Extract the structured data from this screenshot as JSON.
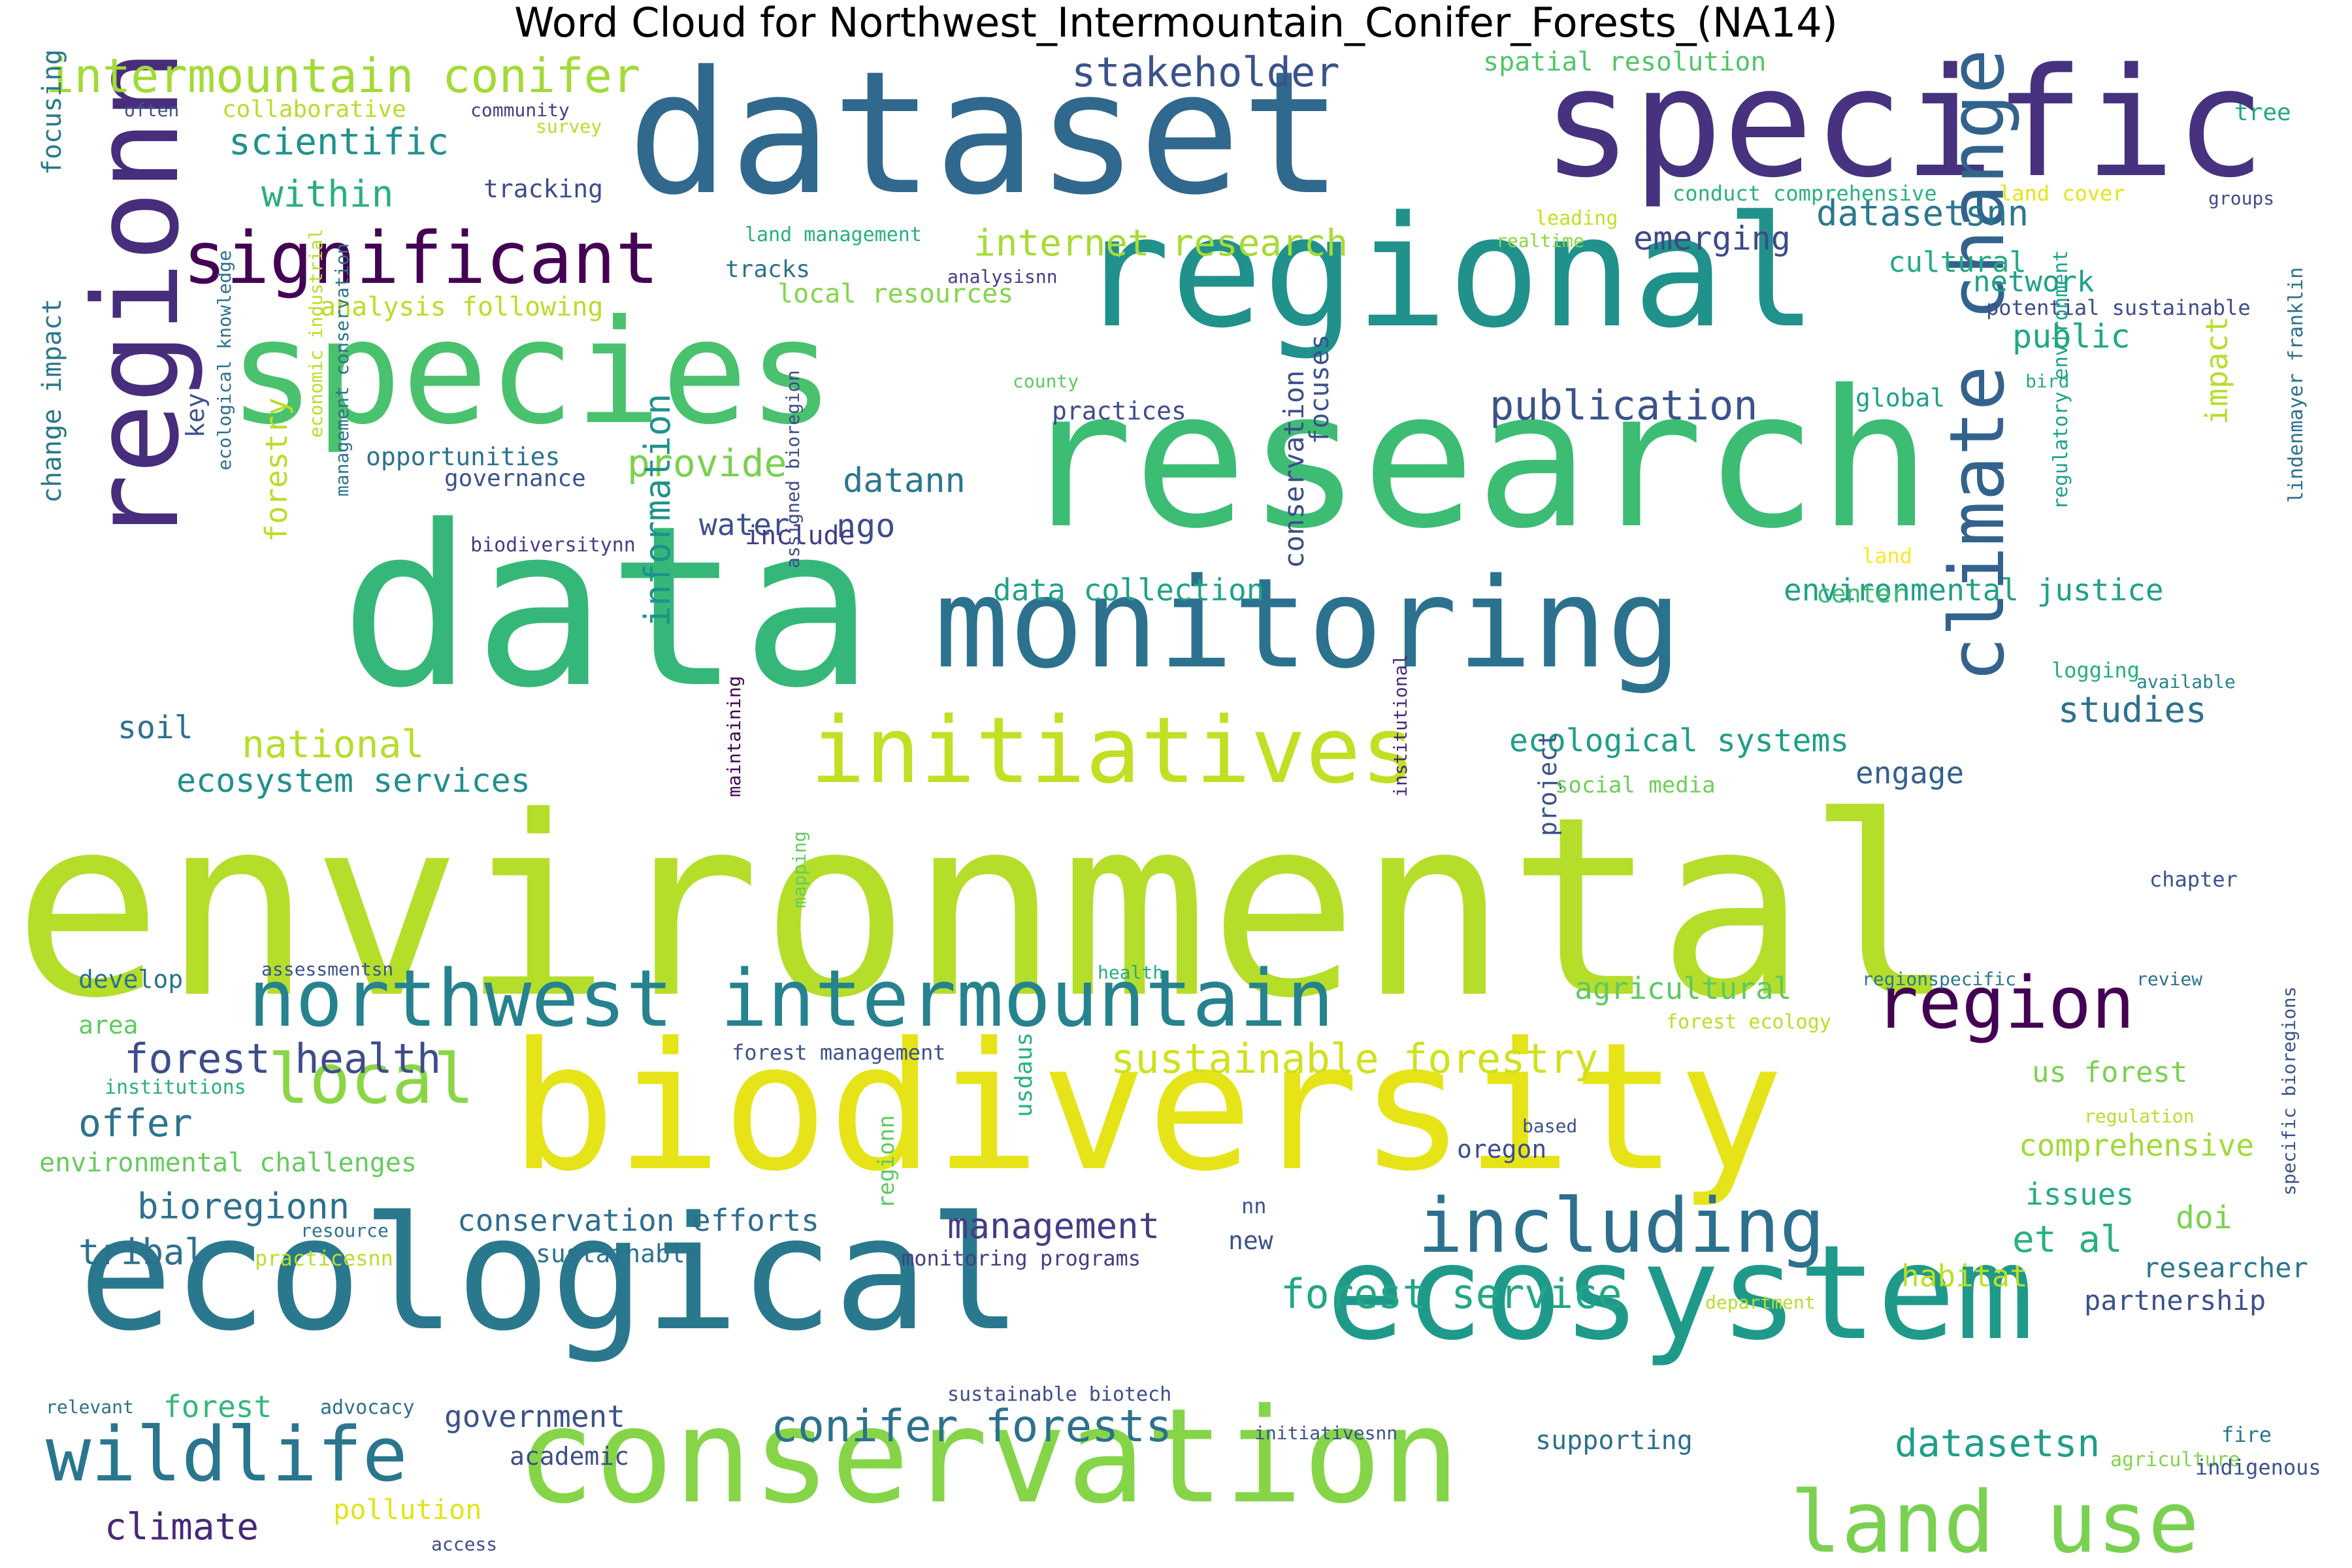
{
  "title": "Word Cloud for Northwest_Intermountain_Conifer_Forests_(NA14)",
  "colors": {
    "palette": "viridis",
    "background": "#ffffff"
  },
  "words": [
    {
      "text": "environmental",
      "color": "#b5de2b"
    },
    {
      "text": "data",
      "color": "#35b779"
    },
    {
      "text": "research",
      "color": "#3dbc74"
    },
    {
      "text": "dataset",
      "color": "#31688e"
    },
    {
      "text": "specific",
      "color": "#46327e"
    },
    {
      "text": "biodiversity",
      "color": "#e6e419"
    },
    {
      "text": "regional",
      "color": "#21918c"
    },
    {
      "text": "ecological",
      "color": "#2a788e"
    },
    {
      "text": "species",
      "color": "#4ac16d"
    },
    {
      "text": "monitoring",
      "color": "#2c728e"
    },
    {
      "text": "conservation",
      "color": "#86d549"
    },
    {
      "text": "ecosystem",
      "color": "#1f9a8a"
    },
    {
      "text": "regionn",
      "color": "#472d7b"
    },
    {
      "text": "initiatives",
      "color": "#c2df23"
    },
    {
      "text": "northwest intermountain",
      "color": "#26828e"
    },
    {
      "text": "including",
      "color": "#2d708e"
    },
    {
      "text": "climate change",
      "color": "#33638d"
    },
    {
      "text": "significant",
      "color": "#440154"
    },
    {
      "text": "land use",
      "color": "#7ad151"
    },
    {
      "text": "wildlife",
      "color": "#2a768e"
    },
    {
      "text": "region",
      "color": "#440154"
    },
    {
      "text": "local",
      "color": "#8bd646"
    },
    {
      "text": "intermountain conifer",
      "color": "#a2da37"
    },
    {
      "text": "conifer forests",
      "color": "#2c728e"
    },
    {
      "text": "forest health",
      "color": "#3e4c8a"
    },
    {
      "text": "stakeholder",
      "color": "#3b528b"
    },
    {
      "text": "scientific",
      "color": "#21918c"
    },
    {
      "text": "within",
      "color": "#29af7f"
    },
    {
      "text": "sustainable forestry",
      "color": "#d0e11c"
    },
    {
      "text": "forest service",
      "color": "#22a785"
    },
    {
      "text": "publication",
      "color": "#3b528b"
    },
    {
      "text": "national",
      "color": "#b5de2b"
    },
    {
      "text": "ecosystem services",
      "color": "#218f8d"
    },
    {
      "text": "provide",
      "color": "#7ad151"
    },
    {
      "text": "datann",
      "color": "#2a788e"
    },
    {
      "text": "internet research",
      "color": "#a8db34"
    },
    {
      "text": "datasetsnn",
      "color": "#2a788e"
    },
    {
      "text": "cultural",
      "color": "#25ab82"
    },
    {
      "text": "network",
      "color": "#1fa188"
    },
    {
      "text": "public",
      "color": "#22a785"
    },
    {
      "text": "studies",
      "color": "#2c728e"
    },
    {
      "text": "ecological systems",
      "color": "#1f9e89"
    },
    {
      "text": "environmental justice",
      "color": "#1fa088"
    },
    {
      "text": "agricultural",
      "color": "#5ec962"
    },
    {
      "text": "datasetsn",
      "color": "#1f9e89"
    },
    {
      "text": "offer",
      "color": "#2c728e"
    },
    {
      "text": "bioregionn",
      "color": "#2d708e"
    },
    {
      "text": "tribal",
      "color": "#2e6f8e"
    },
    {
      "text": "management",
      "color": "#433e85"
    },
    {
      "text": "et al",
      "color": "#2ab07f"
    },
    {
      "text": "climate",
      "color": "#482878"
    },
    {
      "text": "government",
      "color": "#3b528b"
    },
    {
      "text": "emerging",
      "color": "#3e4989"
    },
    {
      "text": "information",
      "color": "#21918c"
    },
    {
      "text": "engage",
      "color": "#355f8d"
    },
    {
      "text": "comprehensive",
      "color": "#a0da39"
    },
    {
      "text": "us forest",
      "color": "#7ad151"
    },
    {
      "text": "habitat",
      "color": "#bddf26"
    },
    {
      "text": "researcher",
      "color": "#2a788e"
    },
    {
      "text": "partnership",
      "color": "#3b528b"
    },
    {
      "text": "issues",
      "color": "#25ab82"
    },
    {
      "text": "doi",
      "color": "#7ad151"
    },
    {
      "text": "forest",
      "color": "#35b779"
    },
    {
      "text": "supporting",
      "color": "#2d708e"
    },
    {
      "text": "conservation efforts",
      "color": "#2e6e8e"
    },
    {
      "text": "environmental challenges",
      "color": "#65cb5e"
    },
    {
      "text": "analysis following",
      "color": "#b8de29"
    },
    {
      "text": "local resources",
      "color": "#84d44b"
    },
    {
      "text": "forestry",
      "color": "#b8de29"
    },
    {
      "text": "water",
      "color": "#3b528b"
    },
    {
      "text": "ngo",
      "color": "#3e4c8a"
    },
    {
      "text": "include",
      "color": "#433e85"
    },
    {
      "text": "data collection",
      "color": "#1fa188"
    },
    {
      "text": "opportunities",
      "color": "#2c728e"
    },
    {
      "text": "governance",
      "color": "#3b528b"
    },
    {
      "text": "soil",
      "color": "#2d708e"
    },
    {
      "text": "develop",
      "color": "#2c728e"
    },
    {
      "text": "area",
      "color": "#5ec962"
    },
    {
      "text": "focusing",
      "color": "#2a788e"
    },
    {
      "text": "change impact",
      "color": "#2a788e"
    },
    {
      "text": "key",
      "color": "#3b528b"
    },
    {
      "text": "impact",
      "color": "#b5de2b"
    },
    {
      "text": "focuses",
      "color": "#3b528b"
    },
    {
      "text": "practices",
      "color": "#3e4c8a"
    },
    {
      "text": "global",
      "color": "#1fa188"
    },
    {
      "text": "center",
      "color": "#3dbc74"
    },
    {
      "text": "project",
      "color": "#3b528b"
    },
    {
      "text": "tracking",
      "color": "#3e4c8a"
    },
    {
      "text": "spatial resolution",
      "color": "#52c569"
    },
    {
      "text": "collaborative",
      "color": "#b5de2b"
    },
    {
      "text": "community",
      "color": "#433e85"
    },
    {
      "text": "survey",
      "color": "#b5de2b"
    },
    {
      "text": "often",
      "color": "#3b528b"
    },
    {
      "text": "tree",
      "color": "#22a785"
    },
    {
      "text": "conduct comprehensive",
      "color": "#2ab07f"
    },
    {
      "text": "land cover",
      "color": "#e2e418"
    },
    {
      "text": "groups",
      "color": "#3e4c8a"
    },
    {
      "text": "leading",
      "color": "#c2df23"
    },
    {
      "text": "realtime",
      "color": "#8bd646"
    },
    {
      "text": "land management",
      "color": "#29af7f"
    },
    {
      "text": "tracks",
      "color": "#2c728e"
    },
    {
      "text": "analysisnn",
      "color": "#433e85"
    },
    {
      "text": "potential sustainable",
      "color": "#3e4c8a"
    },
    {
      "text": "county",
      "color": "#5ec962"
    },
    {
      "text": "bird",
      "color": "#25ab82"
    },
    {
      "text": "land",
      "color": "#fde725"
    },
    {
      "text": "logging",
      "color": "#27ad81"
    },
    {
      "text": "available",
      "color": "#25848e"
    },
    {
      "text": "social media",
      "color": "#6ece58"
    },
    {
      "text": "chapter",
      "color": "#3b528b"
    },
    {
      "text": "lindenmayer franklin",
      "color": "#2d708e"
    },
    {
      "text": "regulatory environment",
      "color": "#1fa188"
    },
    {
      "text": "biodiversitynn",
      "color": "#433e85"
    },
    {
      "text": "assigned bioregion",
      "color": "#3e4c8a"
    },
    {
      "text": "maintaining",
      "color": "#440154"
    },
    {
      "text": "institutional",
      "color": "#482878"
    },
    {
      "text": "mapping",
      "color": "#65cb5e"
    },
    {
      "text": "health",
      "color": "#25ab82"
    },
    {
      "text": "assessmentsn",
      "color": "#3b528b"
    },
    {
      "text": "regionspecific",
      "color": "#2a788e"
    },
    {
      "text": "review",
      "color": "#2d708e"
    },
    {
      "text": "forest ecology",
      "color": "#b8de29"
    },
    {
      "text": "forest management",
      "color": "#3b528b"
    },
    {
      "text": "institutions",
      "color": "#29af7f"
    },
    {
      "text": "usdaus",
      "color": "#2ab07f"
    },
    {
      "text": "based",
      "color": "#3b528b"
    },
    {
      "text": "regulation",
      "color": "#b5de2b"
    },
    {
      "text": "oregon",
      "color": "#3e4c8a"
    },
    {
      "text": "nn",
      "color": "#3b528b"
    },
    {
      "text": "new",
      "color": "#3b528b"
    },
    {
      "text": "resource",
      "color": "#2d708e"
    },
    {
      "text": "practicesnn",
      "color": "#b8de29"
    },
    {
      "text": "sustainable",
      "color": "#2d708e"
    },
    {
      "text": "monitoring programs",
      "color": "#433e85"
    },
    {
      "text": "regionn",
      "color": "#5ec962"
    },
    {
      "text": "department",
      "color": "#b5de2b"
    },
    {
      "text": "specific bioregions",
      "color": "#3b528b"
    },
    {
      "text": "relevant",
      "color": "#2d708e"
    },
    {
      "text": "advocacy",
      "color": "#2d708e"
    },
    {
      "text": "academic",
      "color": "#3e4c8a"
    },
    {
      "text": "pollution",
      "color": "#e2e418"
    },
    {
      "text": "access",
      "color": "#3e4c8a"
    },
    {
      "text": "sustainable biotech",
      "color": "#3e4c8a"
    },
    {
      "text": "initiativesnn",
      "color": "#3b528b"
    },
    {
      "text": "fire",
      "color": "#2a788e"
    },
    {
      "text": "agriculture",
      "color": "#84d44b"
    },
    {
      "text": "indigenous",
      "color": "#3b528b"
    },
    {
      "text": "economic industrial",
      "color": "#b8de29"
    },
    {
      "text": "management conservation",
      "color": "#2c728e"
    },
    {
      "text": "ecological knowledge",
      "color": "#2d708e"
    },
    {
      "text": "conservation",
      "color": "#3e4c8a"
    }
  ]
}
